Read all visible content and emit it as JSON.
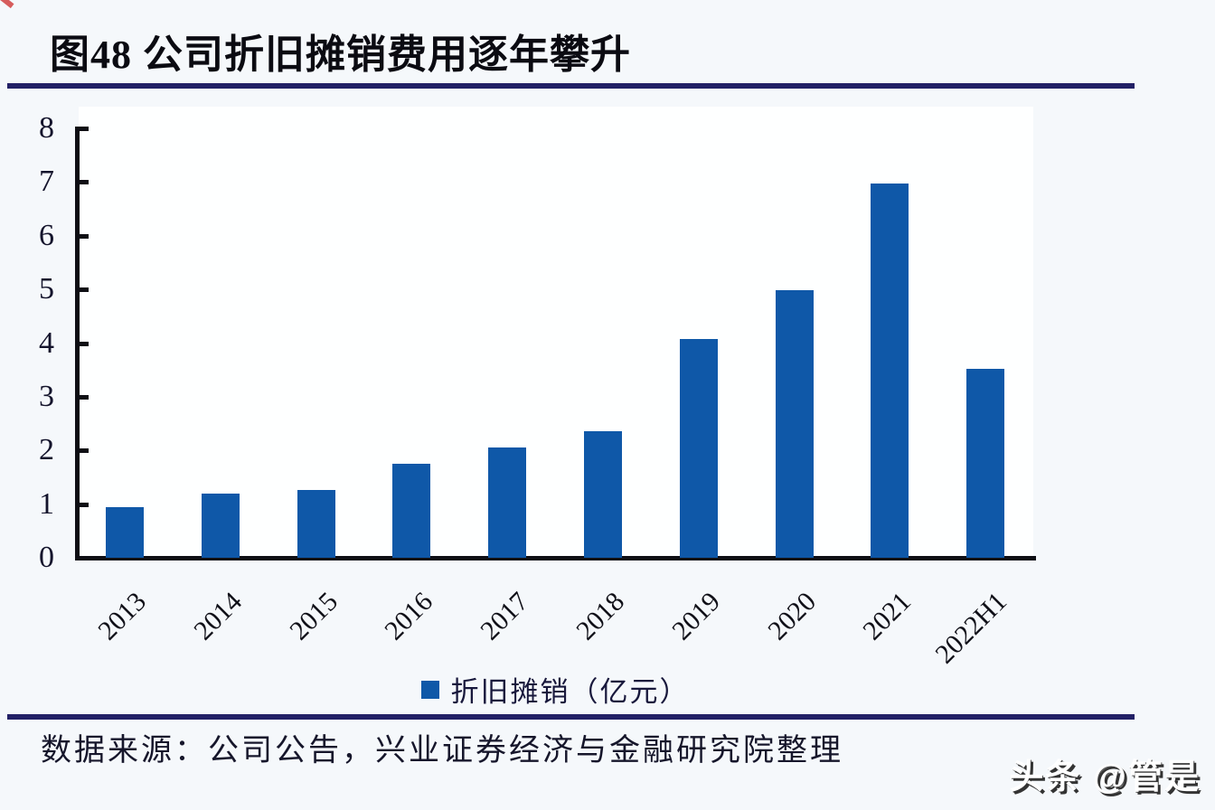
{
  "page": {
    "background": "#f5f8fb",
    "watermark": "头条 @管是"
  },
  "header": {
    "title": "图48 公司折旧摊销费用逐年攀升",
    "rule_color": "#232166"
  },
  "chart_data": {
    "type": "bar",
    "title": "图48 公司折旧摊销费用逐年攀升",
    "categories": [
      "2013",
      "2014",
      "2015",
      "2016",
      "2017",
      "2018",
      "2019",
      "2020",
      "2021",
      "2022H1"
    ],
    "values": [
      0.94,
      1.2,
      1.27,
      1.76,
      2.05,
      2.35,
      4.08,
      4.98,
      6.97,
      3.52
    ],
    "series_name": "折旧摊销（亿元）",
    "xlabel": "",
    "ylabel": "",
    "ylim": [
      0,
      8
    ],
    "ytick_step": 1,
    "yticks": [
      "0",
      "1",
      "2",
      "3",
      "4",
      "5",
      "6",
      "7",
      "8"
    ],
    "bar_color": "#0F58A8",
    "axis_color": "#0e0e14",
    "grid": false,
    "legend_position": "bottom",
    "xtick_rotation": 45
  },
  "legend": {
    "label": "折旧摊销（亿元）",
    "swatch_color": "#0F58A8"
  },
  "footer": {
    "source": "数据来源：公司公告，兴业证券经济与金融研究院整理"
  }
}
